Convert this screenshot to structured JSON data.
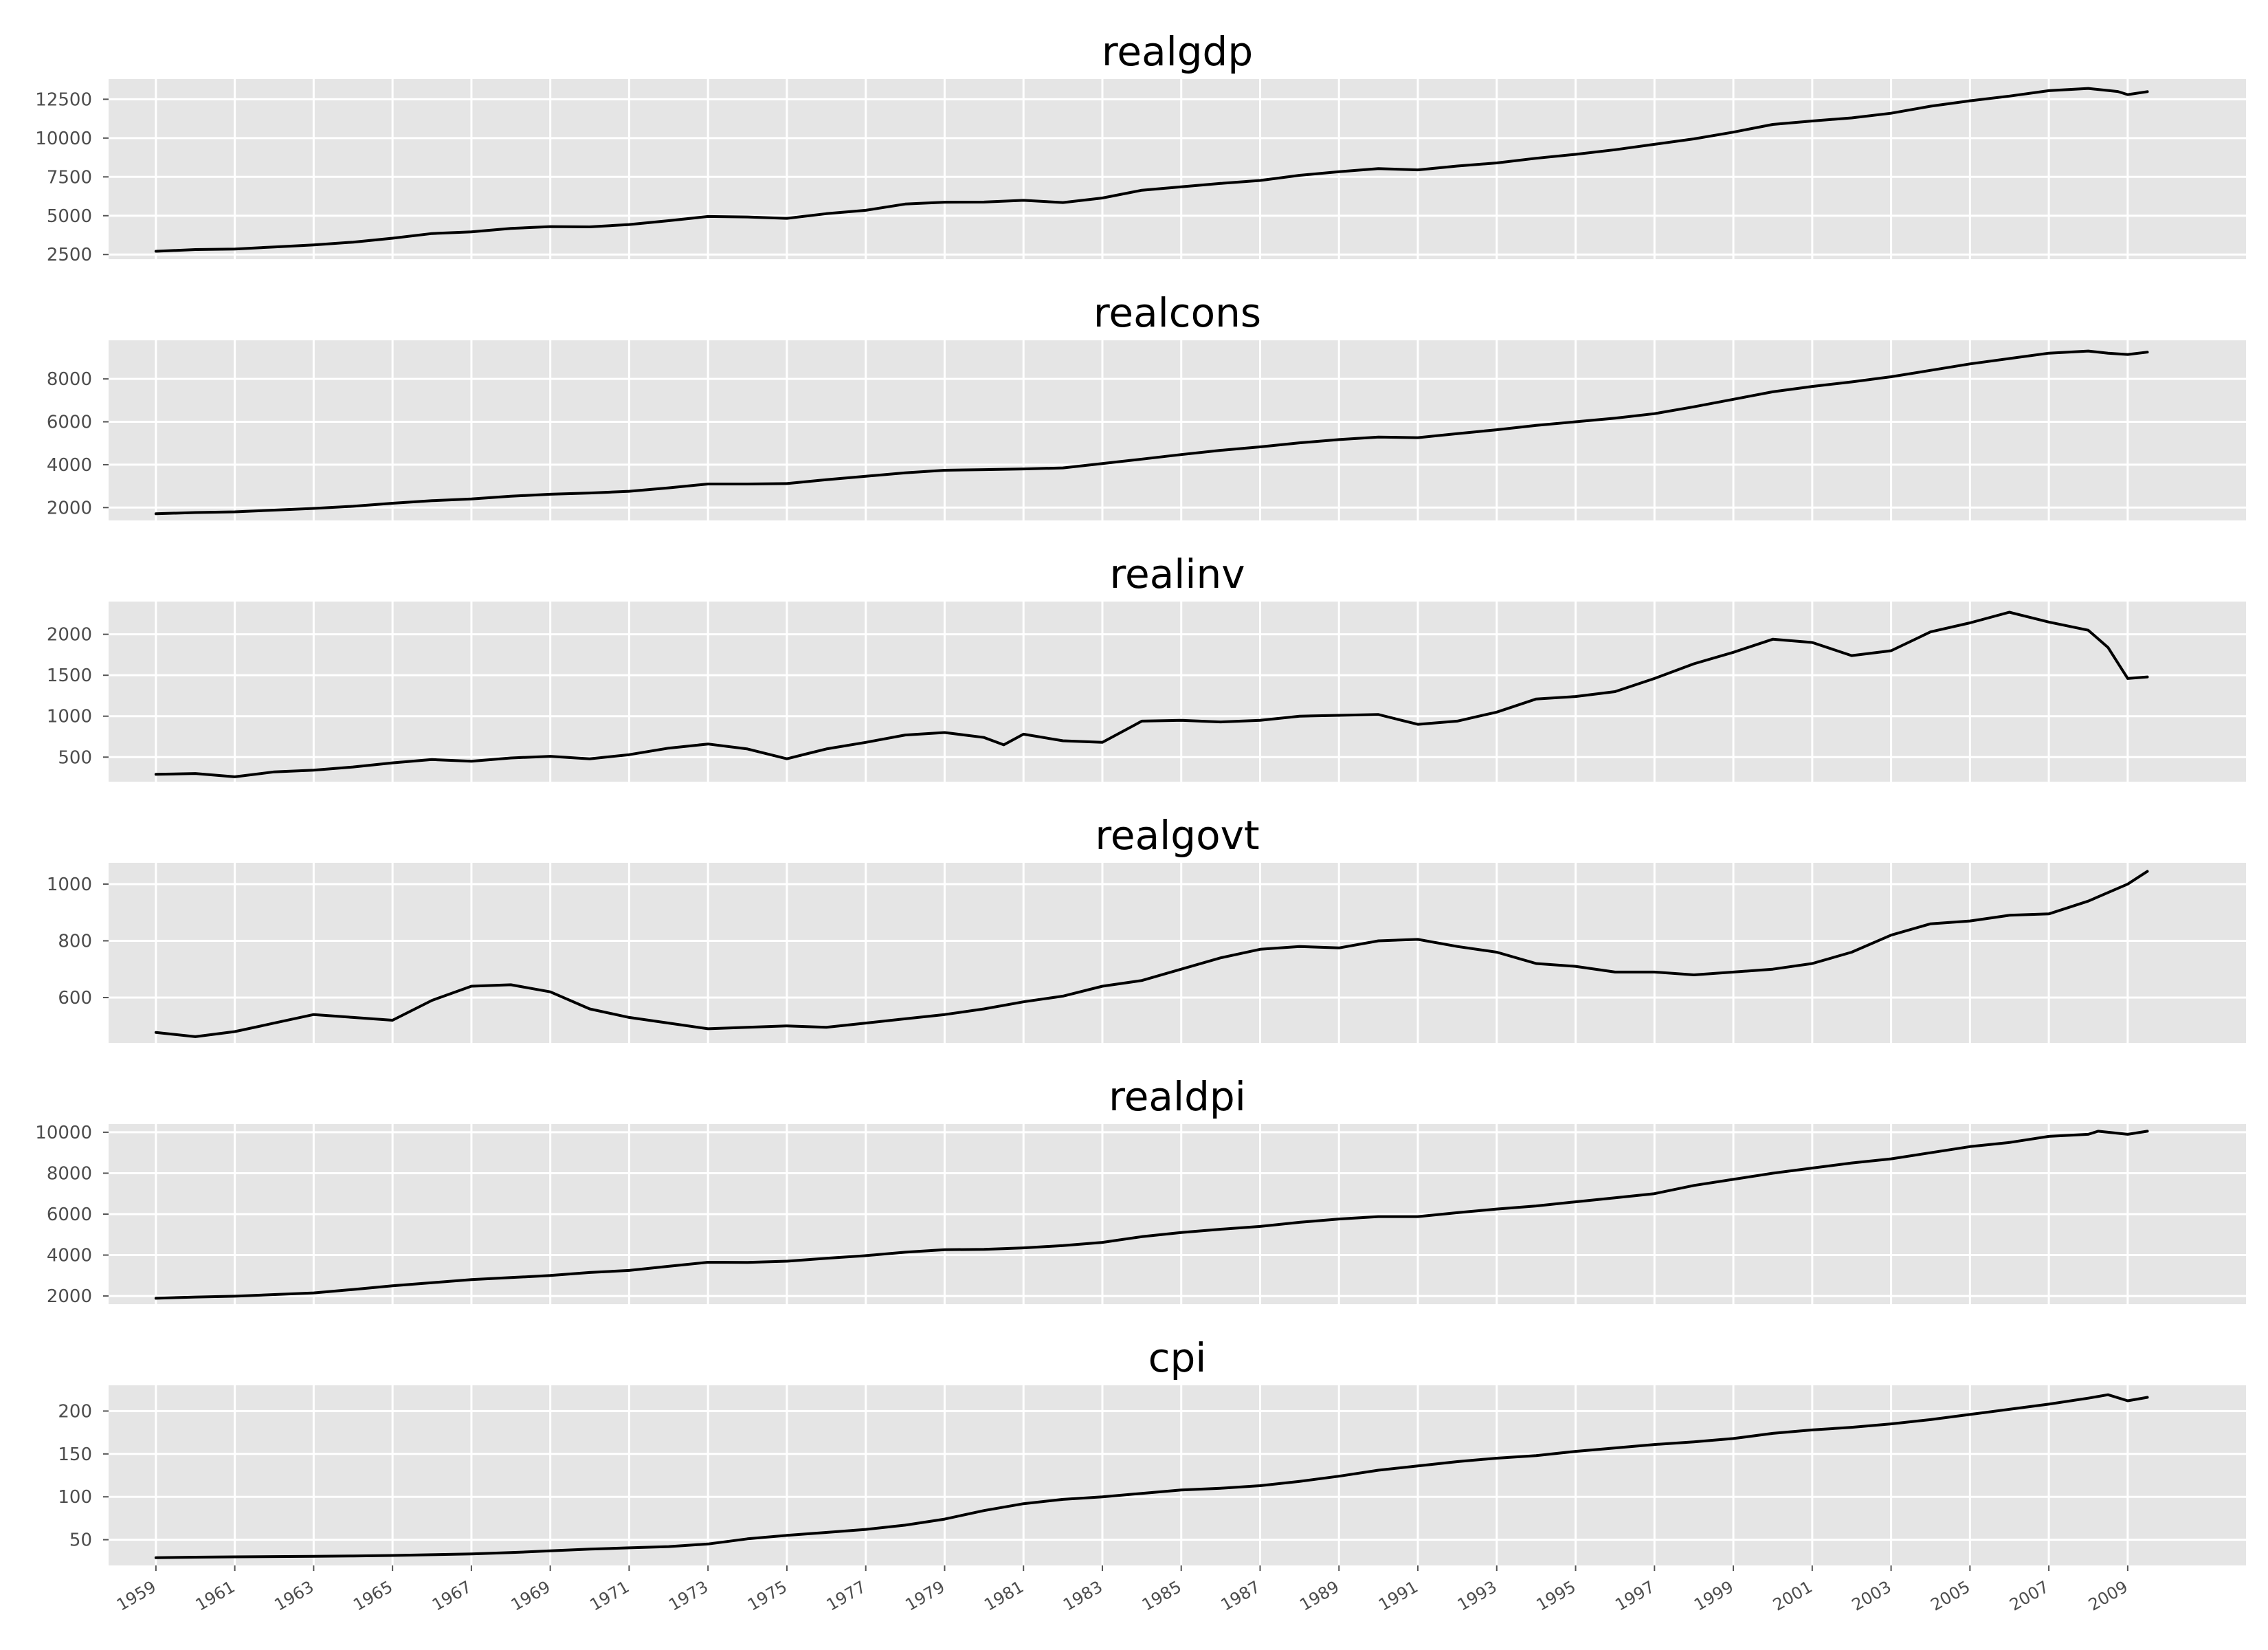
{
  "figure": {
    "x_tick_labels": [
      "1959",
      "1961",
      "1963",
      "1965",
      "1967",
      "1969",
      "1971",
      "1973",
      "1975",
      "1977",
      "1979",
      "1981",
      "1983",
      "1985",
      "1987",
      "1989",
      "1991",
      "1993",
      "1995",
      "1997",
      "1999",
      "2001",
      "2003",
      "2005",
      "2007",
      "2009"
    ]
  },
  "chart_data": [
    {
      "type": "line",
      "title": "realgdp",
      "xlabel": "",
      "ylabel": "",
      "x": [
        1959,
        1960,
        1961,
        1962,
        1963,
        1964,
        1965,
        1966,
        1967,
        1968,
        1969,
        1970,
        1971,
        1972,
        1973,
        1974,
        1975,
        1976,
        1977,
        1978,
        1979,
        1980,
        1981,
        1982,
        1983,
        1984,
        1985,
        1986,
        1987,
        1988,
        1989,
        1990,
        1991,
        1992,
        1993,
        1994,
        1995,
        1996,
        1997,
        1998,
        1999,
        2000,
        2001,
        2002,
        2003,
        2004,
        2005,
        2006,
        2007,
        2008,
        2008.75,
        2009,
        2009.5
      ],
      "values": [
        2710,
        2820,
        2850,
        2990,
        3120,
        3300,
        3550,
        3850,
        3960,
        4180,
        4300,
        4280,
        4430,
        4680,
        4950,
        4920,
        4830,
        5130,
        5350,
        5750,
        5870,
        5880,
        5990,
        5850,
        6140,
        6640,
        6860,
        7080,
        7270,
        7600,
        7830,
        8030,
        7950,
        8200,
        8400,
        8700,
        8950,
        9250,
        9600,
        9950,
        10380,
        10880,
        11100,
        11300,
        11600,
        12050,
        12400,
        12700,
        13050,
        13200,
        13000,
        12800,
        12990
      ],
      "yticks": [
        2500,
        5000,
        7500,
        10000,
        12500
      ],
      "ylim": [
        2200,
        13800
      ],
      "line_color": "#000000"
    },
    {
      "type": "line",
      "title": "realcons",
      "xlabel": "",
      "ylabel": "",
      "x": [
        1959,
        1960,
        1961,
        1962,
        1963,
        1964,
        1965,
        1966,
        1967,
        1968,
        1969,
        1970,
        1971,
        1972,
        1973,
        1974,
        1975,
        1976,
        1977,
        1978,
        1979,
        1980,
        1981,
        1982,
        1983,
        1984,
        1985,
        1986,
        1987,
        1988,
        1989,
        1990,
        1991,
        1992,
        1993,
        1994,
        1995,
        1996,
        1997,
        1998,
        1999,
        2000,
        2001,
        2002,
        2003,
        2004,
        2005,
        2006,
        2007,
        2008,
        2008.5,
        2009,
        2009.5
      ],
      "values": [
        1710,
        1770,
        1800,
        1880,
        1960,
        2060,
        2200,
        2320,
        2400,
        2530,
        2620,
        2680,
        2760,
        2920,
        3100,
        3100,
        3120,
        3300,
        3460,
        3620,
        3740,
        3770,
        3800,
        3850,
        4050,
        4260,
        4470,
        4670,
        4830,
        5020,
        5170,
        5290,
        5260,
        5450,
        5630,
        5830,
        6000,
        6170,
        6380,
        6700,
        7050,
        7400,
        7650,
        7860,
        8100,
        8400,
        8700,
        8950,
        9200,
        9300,
        9200,
        9140,
        9250
      ],
      "yticks": [
        2000,
        4000,
        6000,
        8000
      ],
      "ylim": [
        1400,
        9800
      ],
      "line_color": "#000000"
    },
    {
      "type": "line",
      "title": "realinv",
      "xlabel": "",
      "ylabel": "",
      "x": [
        1959,
        1960,
        1961,
        1962,
        1963,
        1964,
        1965,
        1966,
        1967,
        1968,
        1969,
        1970,
        1971,
        1972,
        1973,
        1974,
        1975,
        1975.5,
        1976,
        1977,
        1978,
        1979,
        1980,
        1980.5,
        1981,
        1982,
        1983,
        1984,
        1985,
        1986,
        1987,
        1988,
        1989,
        1990,
        1991,
        1992,
        1993,
        1994,
        1995,
        1996,
        1997,
        1998,
        1999,
        2000,
        2001,
        2002,
        2003,
        2004,
        2005,
        2006,
        2007,
        2008,
        2008.5,
        2009,
        2009.5
      ],
      "values": [
        290,
        300,
        260,
        320,
        340,
        380,
        430,
        470,
        450,
        490,
        510,
        480,
        530,
        610,
        660,
        600,
        480,
        540,
        600,
        680,
        770,
        800,
        740,
        650,
        780,
        700,
        680,
        940,
        950,
        930,
        950,
        1000,
        1010,
        1020,
        900,
        940,
        1050,
        1210,
        1240,
        1300,
        1460,
        1640,
        1780,
        1940,
        1900,
        1740,
        1800,
        2030,
        2140,
        2270,
        2150,
        2050,
        1840,
        1460,
        1480
      ],
      "yticks": [
        500,
        1000,
        1500,
        2000
      ],
      "ylim": [
        200,
        2400
      ],
      "line_color": "#000000"
    },
    {
      "type": "line",
      "title": "realgovt",
      "xlabel": "",
      "ylabel": "",
      "x": [
        1959,
        1960,
        1961,
        1962,
        1963,
        1964,
        1965,
        1966,
        1967,
        1968,
        1969,
        1970,
        1971,
        1972,
        1973,
        1974,
        1975,
        1976,
        1977,
        1978,
        1979,
        1980,
        1981,
        1982,
        1983,
        1984,
        1985,
        1986,
        1987,
        1988,
        1989,
        1990,
        1991,
        1992,
        1993,
        1994,
        1995,
        1996,
        1997,
        1998,
        1999,
        2000,
        2001,
        2002,
        2003,
        2004,
        2005,
        2006,
        2007,
        2008,
        2009,
        2009.5
      ],
      "values": [
        477,
        462,
        480,
        510,
        540,
        530,
        520,
        590,
        640,
        645,
        620,
        560,
        530,
        510,
        490,
        495,
        500,
        495,
        510,
        525,
        540,
        560,
        585,
        605,
        640,
        660,
        700,
        740,
        770,
        780,
        775,
        800,
        805,
        780,
        760,
        720,
        710,
        690,
        690,
        680,
        690,
        700,
        720,
        760,
        820,
        860,
        870,
        890,
        895,
        940,
        1000,
        1045
      ],
      "yticks": [
        600,
        800,
        1000
      ],
      "ylim": [
        440,
        1075
      ],
      "line_color": "#000000"
    },
    {
      "type": "line",
      "title": "realdpi",
      "xlabel": "",
      "ylabel": "",
      "x": [
        1959,
        1960,
        1961,
        1962,
        1963,
        1964,
        1965,
        1966,
        1967,
        1968,
        1969,
        1970,
        1971,
        1972,
        1973,
        1974,
        1975,
        1976,
        1977,
        1978,
        1979,
        1980,
        1981,
        1982,
        1983,
        1984,
        1985,
        1986,
        1987,
        1988,
        1989,
        1990,
        1991,
        1992,
        1993,
        1994,
        1995,
        1996,
        1997,
        1998,
        1999,
        2000,
        2001,
        2002,
        2003,
        2004,
        2005,
        2006,
        2007,
        2008,
        2008.25,
        2009,
        2009.5
      ],
      "values": [
        1890,
        1950,
        1990,
        2070,
        2150,
        2320,
        2500,
        2650,
        2800,
        2900,
        3000,
        3150,
        3250,
        3450,
        3650,
        3640,
        3700,
        3840,
        3970,
        4140,
        4260,
        4280,
        4350,
        4460,
        4620,
        4900,
        5100,
        5260,
        5400,
        5600,
        5760,
        5880,
        5880,
        6070,
        6250,
        6400,
        6600,
        6800,
        7000,
        7400,
        7700,
        8000,
        8250,
        8500,
        8700,
        9000,
        9300,
        9500,
        9800,
        9900,
        10050,
        9900,
        10050
      ],
      "yticks": [
        2000,
        4000,
        6000,
        8000,
        10000
      ],
      "ylim": [
        1600,
        10400
      ],
      "line_color": "#000000"
    },
    {
      "type": "line",
      "title": "cpi",
      "xlabel": "",
      "ylabel": "",
      "x": [
        1959,
        1960,
        1961,
        1962,
        1963,
        1964,
        1965,
        1966,
        1967,
        1968,
        1969,
        1970,
        1971,
        1972,
        1973,
        1974,
        1975,
        1976,
        1977,
        1978,
        1979,
        1980,
        1981,
        1982,
        1983,
        1984,
        1985,
        1986,
        1987,
        1988,
        1989,
        1990,
        1991,
        1992,
        1993,
        1994,
        1995,
        1996,
        1997,
        1998,
        1999,
        2000,
        2001,
        2002,
        2003,
        2004,
        2005,
        2006,
        2007,
        2008,
        2008.5,
        2009,
        2009.5
      ],
      "values": [
        29,
        29.6,
        30,
        30.3,
        30.7,
        31.1,
        31.6,
        32.5,
        33.5,
        35,
        37,
        39,
        40.5,
        42,
        45,
        51,
        55,
        58.5,
        62,
        67,
        74,
        84,
        92,
        97,
        100,
        104,
        108,
        110,
        113,
        118,
        124,
        131,
        136,
        141,
        145,
        148,
        153,
        157,
        161,
        164,
        168,
        174,
        178,
        181,
        185,
        190,
        196,
        202,
        208,
        215,
        219,
        212,
        216
      ],
      "yticks": [
        50,
        100,
        150,
        200
      ],
      "ylim": [
        20,
        230
      ],
      "line_color": "#000000"
    }
  ]
}
